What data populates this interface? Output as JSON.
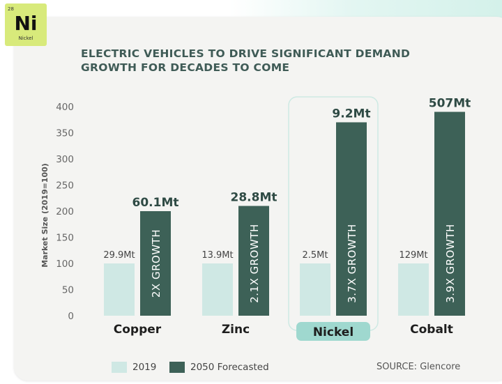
{
  "badge": {
    "number": "28",
    "symbol": "Ni",
    "name": "Nickel"
  },
  "title": "ELECTRIC VEHICLES TO DRIVE SIGNIFICANT DEMAND GROWTH FOR DECADES TO COME",
  "source": "SOURCE: Glencore",
  "colors": {
    "series_2019": "#cfe8e4",
    "series_2050": "#3d6157",
    "highlight": "#9fd8cf",
    "title": "#3f5b56"
  },
  "chart_data": {
    "type": "bar",
    "title": "ELECTRIC VEHICLES TO DRIVE SIGNIFICANT DEMAND GROWTH FOR DECADES TO COME",
    "ylabel": "Market Size (2019=100)",
    "xlabel": "",
    "ylim": [
      0,
      400
    ],
    "yticks": [
      0,
      50,
      100,
      150,
      200,
      250,
      300,
      350,
      400
    ],
    "grid": false,
    "legend_position": "bottom-left",
    "categories": [
      "Copper",
      "Zinc",
      "Nickel",
      "Cobalt"
    ],
    "highlighted_category": "Nickel",
    "series": [
      {
        "name": "2019",
        "values": [
          100,
          100,
          100,
          100
        ],
        "labels": [
          "29.9Mt",
          "13.9Mt",
          "2.5Mt",
          "129Mt"
        ]
      },
      {
        "name": "2050 Forecasted",
        "values": [
          200,
          210,
          370,
          390
        ],
        "labels": [
          "60.1Mt",
          "28.8Mt",
          "9.2Mt",
          "507Mt"
        ],
        "inner_labels": [
          "2X GROWTH",
          "2.1X GROWTH",
          "3.7X GROWTH",
          "3.9X GROWTH"
        ]
      }
    ]
  }
}
